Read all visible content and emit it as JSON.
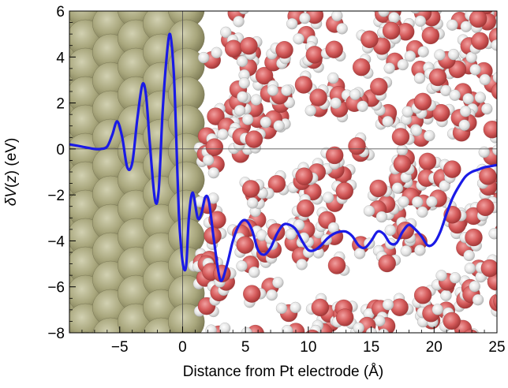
{
  "chart_data": {
    "type": "line",
    "title": "",
    "xlabel": "Distance from Pt electrode (Å)",
    "ylabel": "δV(z) (eV)",
    "ylabel_parts": {
      "delta": "δ",
      "v": "V",
      "open": "(",
      "z": "z",
      "close": ")",
      "unit": " (eV)"
    },
    "xlim": [
      -9,
      25
    ],
    "ylim": [
      -8,
      6
    ],
    "xticks": [
      -5,
      0,
      5,
      10,
      15,
      20,
      25
    ],
    "xtick_labels": [
      "−5",
      "0",
      "5",
      "10",
      "15",
      "20",
      "25"
    ],
    "yticks": [
      -8,
      -6,
      -4,
      -2,
      0,
      2,
      4,
      6
    ],
    "ytick_labels": [
      "−8",
      "−6",
      "−4",
      "−2",
      "0",
      "2",
      "4",
      "6"
    ],
    "grid": false,
    "reference_lines": {
      "x": 0,
      "y": 0
    },
    "background": "molecular snapshot: Pt electrode atoms (left of x≈1) and water molecules (right)",
    "colors": {
      "line": "#1a1ae6",
      "pt_atom": "#a8a67c",
      "oxygen": "#d55b5b",
      "hydrogen": "#e4e4e4"
    },
    "series": [
      {
        "x": [
          -9,
          -8,
          -7,
          -6.5,
          -6,
          -5.6,
          -5.2,
          -4.8,
          -4.4,
          -4.0,
          -3.6,
          -3.2,
          -2.9,
          -2.6,
          -2.2,
          -1.9,
          -1.6,
          -1.3,
          -1.0,
          -0.7,
          -0.5,
          -0.3,
          -0.1,
          0.1,
          0.3,
          0.5,
          0.8,
          1.2,
          1.5,
          1.8,
          2.1,
          2.5,
          3.0,
          3.5,
          4.0,
          4.5,
          5.0,
          5.5,
          6.0,
          6.5,
          7.0,
          7.5,
          8.0,
          8.5,
          9.0,
          9.5,
          10.0,
          10.5,
          11.0,
          11.5,
          12.0,
          12.5,
          13.0,
          13.5,
          14.0,
          14.5,
          15.0,
          15.5,
          16.0,
          16.5,
          17.0,
          17.5,
          18.0,
          18.5,
          19.0,
          19.5,
          20.0,
          20.5,
          21.0,
          21.5,
          22.0,
          22.5,
          23.0,
          23.5,
          24.0,
          24.5,
          25.0
        ],
        "y": [
          0.2,
          0.1,
          0.0,
          0.0,
          0.1,
          0.6,
          1.2,
          0.5,
          -0.8,
          -0.6,
          1.3,
          2.8,
          2.3,
          0.2,
          -2.2,
          -1.8,
          1.5,
          3.8,
          5.0,
          3.3,
          0.4,
          -2.8,
          -4.4,
          -5.2,
          -5.0,
          -3.0,
          -1.9,
          -3.0,
          -2.8,
          -2.1,
          -2.3,
          -4.0,
          -5.7,
          -5.1,
          -4.0,
          -3.3,
          -3.1,
          -3.5,
          -4.4,
          -4.6,
          -4.3,
          -3.7,
          -3.3,
          -3.3,
          -3.5,
          -4.0,
          -4.4,
          -4.4,
          -4.2,
          -3.9,
          -3.7,
          -3.6,
          -3.6,
          -3.8,
          -4.2,
          -4.3,
          -4.0,
          -3.6,
          -3.7,
          -4.1,
          -4.1,
          -3.6,
          -3.3,
          -3.5,
          -3.8,
          -4.2,
          -4.1,
          -3.6,
          -2.8,
          -2.1,
          -1.6,
          -1.2,
          -1.0,
          -0.9,
          -0.8,
          -0.75,
          -0.7
        ]
      }
    ]
  }
}
